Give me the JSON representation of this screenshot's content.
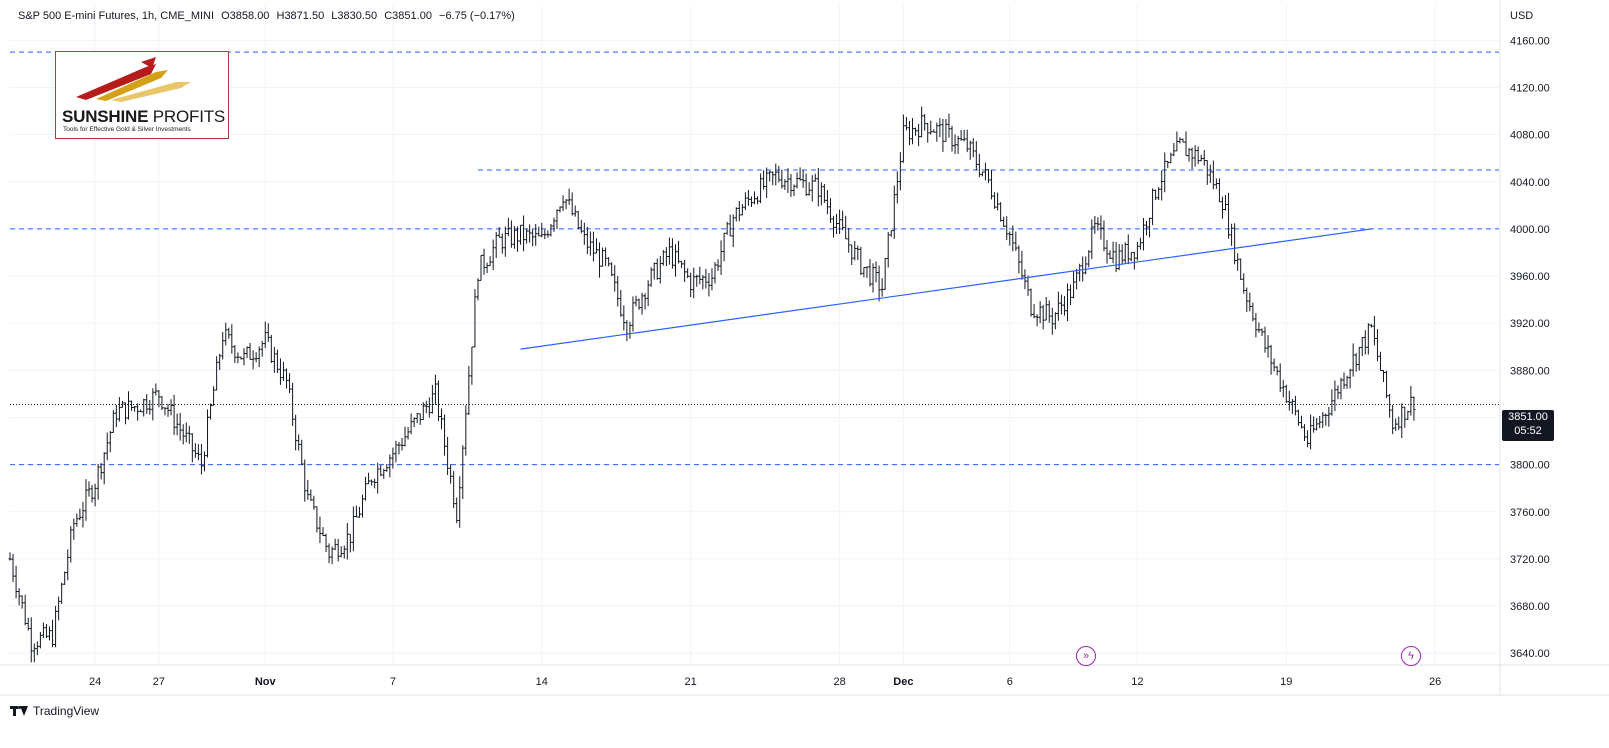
{
  "header": {
    "symbol": "S&P 500 E-mini Futures, 1h, CME_MINI",
    "open": "O3858.00",
    "high": "H3871.50",
    "low": "L3830.50",
    "close": "C3851.00",
    "change": "−6.75 (−0.17%)"
  },
  "logo": {
    "main_bold": "SUNSHINE",
    "main_thin": " PROFITS",
    "sub": "Tools for Effective Gold & Silver Investments"
  },
  "footer": {
    "brand": "TradingView"
  },
  "price_axis": {
    "currency": "USD"
  },
  "last_price": {
    "value": "3851.00",
    "countdown": "05:52"
  },
  "icons": {
    "event1": "fast-forward-circle-icon",
    "event2": "lightning-circle-icon",
    "logo": "sunshine-profits-logo",
    "brand": "tradingview-icon"
  },
  "colors": {
    "candles": "#131722",
    "trendline": "#2962ff",
    "horizontal_levels": "#2962ff",
    "event_icons": "#9c27b0",
    "last_price_tag": "#131722"
  },
  "chart_data": {
    "type": "line",
    "subtype": "ohlc-bars",
    "y_range": [
      3630,
      4190
    ],
    "y_ticks": [
      3640,
      3680,
      3720,
      3760,
      3800,
      3840,
      3880,
      3920,
      3960,
      4000,
      4040,
      4080,
      4120,
      4160
    ],
    "x_range": [
      "2022-10-20",
      "2022-12-29"
    ],
    "x_ticks": [
      {
        "label": "24",
        "date": "2022-10-24"
      },
      {
        "label": "27",
        "date": "2022-10-27"
      },
      {
        "label": "Nov",
        "date": "2022-11-01"
      },
      {
        "label": "7",
        "date": "2022-11-07"
      },
      {
        "label": "14",
        "date": "2022-11-14"
      },
      {
        "label": "21",
        "date": "2022-11-21"
      },
      {
        "label": "28",
        "date": "2022-11-28"
      },
      {
        "label": "Dec",
        "date": "2022-12-01"
      },
      {
        "label": "6",
        "date": "2022-12-06"
      },
      {
        "label": "12",
        "date": "2022-12-12"
      },
      {
        "label": "19",
        "date": "2022-12-19"
      },
      {
        "label": "26",
        "date": "2022-12-26"
      }
    ],
    "price_path": [
      [
        "2022-10-20",
        3720
      ],
      [
        "2022-10-21",
        3650
      ],
      [
        "2022-10-22",
        3655
      ],
      [
        "2022-10-23",
        3750
      ],
      [
        "2022-10-24",
        3785
      ],
      [
        "2022-10-25",
        3845
      ],
      [
        "2022-10-26",
        3850
      ],
      [
        "2022-10-27",
        3860
      ],
      [
        "2022-10-28",
        3830
      ],
      [
        "2022-10-29",
        3800
      ],
      [
        "2022-10-30",
        3910
      ],
      [
        "2022-10-31",
        3890
      ],
      [
        "2022-11-01",
        3905
      ],
      [
        "2022-11-02",
        3870
      ],
      [
        "2022-11-03",
        3770
      ],
      [
        "2022-11-04",
        3725
      ],
      [
        "2022-11-05",
        3740
      ],
      [
        "2022-11-06",
        3790
      ],
      [
        "2022-11-07",
        3810
      ],
      [
        "2022-11-08",
        3835
      ],
      [
        "2022-11-09",
        3860
      ],
      [
        "2022-11-10",
        3760
      ],
      [
        "2022-11-11",
        3965
      ],
      [
        "2022-11-12",
        3990
      ],
      [
        "2022-11-13",
        3995
      ],
      [
        "2022-11-14",
        3990
      ],
      [
        "2022-11-15",
        4030
      ],
      [
        "2022-11-16",
        3990
      ],
      [
        "2022-11-17",
        3970
      ],
      [
        "2022-11-18",
        3920
      ],
      [
        "2022-11-19",
        3955
      ],
      [
        "2022-11-20",
        3980
      ],
      [
        "2022-11-21",
        3955
      ],
      [
        "2022-11-22",
        3960
      ],
      [
        "2022-11-23",
        4010
      ],
      [
        "2022-11-24",
        4030
      ],
      [
        "2022-11-25",
        4045
      ],
      [
        "2022-11-26",
        4040
      ],
      [
        "2022-11-27",
        4035
      ],
      [
        "2022-11-28",
        4000
      ],
      [
        "2022-11-29",
        3970
      ],
      [
        "2022-11-30",
        3950
      ],
      [
        "2022-12-01",
        4080
      ],
      [
        "2022-12-02",
        4090
      ],
      [
        "2022-12-03",
        4080
      ],
      [
        "2022-12-04",
        4070
      ],
      [
        "2022-12-05",
        4040
      ],
      [
        "2022-12-06",
        3995
      ],
      [
        "2022-12-07",
        3935
      ],
      [
        "2022-12-08",
        3925
      ],
      [
        "2022-12-09",
        3950
      ],
      [
        "2022-12-10",
        4000
      ],
      [
        "2022-12-11",
        3975
      ],
      [
        "2022-12-12",
        3985
      ],
      [
        "2022-12-13",
        4040
      ],
      [
        "2022-12-14",
        4070
      ],
      [
        "2022-12-15",
        4060
      ],
      [
        "2022-12-16",
        4025
      ],
      [
        "2022-12-17",
        3950
      ],
      [
        "2022-12-18",
        3900
      ],
      [
        "2022-12-19",
        3860
      ],
      [
        "2022-12-20",
        3820
      ],
      [
        "2022-12-21",
        3850
      ],
      [
        "2022-12-22",
        3885
      ],
      [
        "2022-12-23",
        3915
      ],
      [
        "2022-12-24",
        3835
      ],
      [
        "2022-12-25",
        3855
      ]
    ],
    "horizontal_levels": [
      {
        "value": 4150,
        "from": "2022-10-20"
      },
      {
        "value": 4050,
        "from": "2022-11-11"
      },
      {
        "value": 4000,
        "from": "2022-10-20"
      },
      {
        "value": 3800,
        "from": "2022-10-20"
      }
    ],
    "trendline": {
      "from": [
        "2022-11-13",
        3898
      ],
      "to": [
        "2022-12-23",
        4000
      ]
    },
    "last_price": 3851.0,
    "annotations": [
      {
        "type": "event",
        "date": "2022-12-10",
        "icon": "fast-forward-circle-icon"
      },
      {
        "type": "event",
        "date": "2022-12-25",
        "icon": "lightning-circle-icon"
      }
    ]
  }
}
